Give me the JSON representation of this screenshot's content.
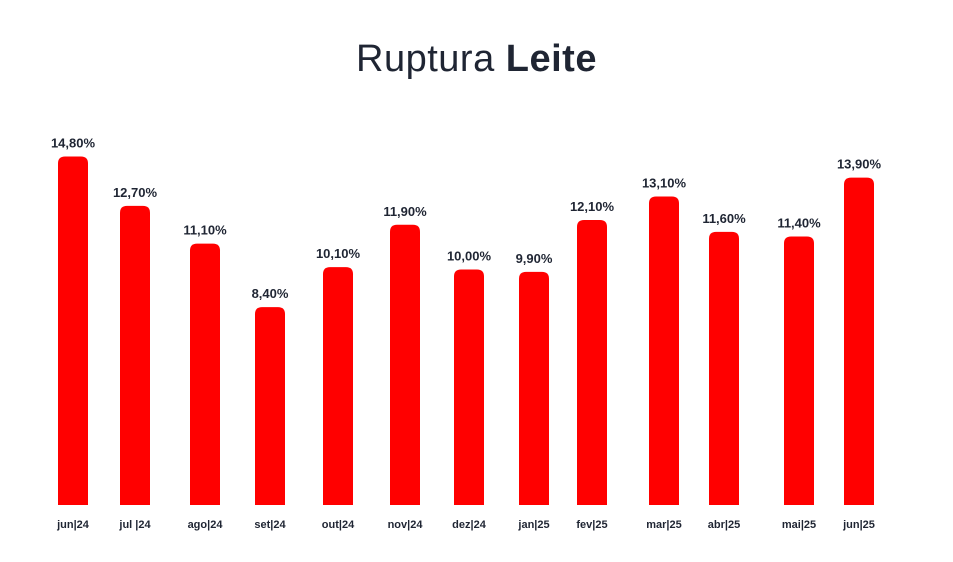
{
  "chart_data": {
    "type": "bar",
    "title_prefix": "Ruptura",
    "title_bold": "Leite",
    "categories": [
      "jun|24",
      "jul |24",
      "ago|24",
      "set|24",
      "out|24",
      "nov|24",
      "dez|24",
      "jan|25",
      "fev|25",
      "mar|25",
      "abr|25",
      "mai|25",
      "jun|25"
    ],
    "values": [
      14.8,
      12.7,
      11.1,
      8.4,
      10.1,
      11.9,
      10.0,
      9.9,
      12.1,
      13.1,
      11.6,
      11.4,
      13.9
    ],
    "value_labels": [
      "14,80%",
      "12,70%",
      "11,10%",
      "8,40%",
      "10,10%",
      "11,90%",
      "10,00%",
      "9,90%",
      "12,10%",
      "13,10%",
      "11,60%",
      "11,40%",
      "13,90%"
    ],
    "ylim": [
      0,
      15
    ],
    "grid": false,
    "legend": "none",
    "bar_color": "#ff0000"
  }
}
